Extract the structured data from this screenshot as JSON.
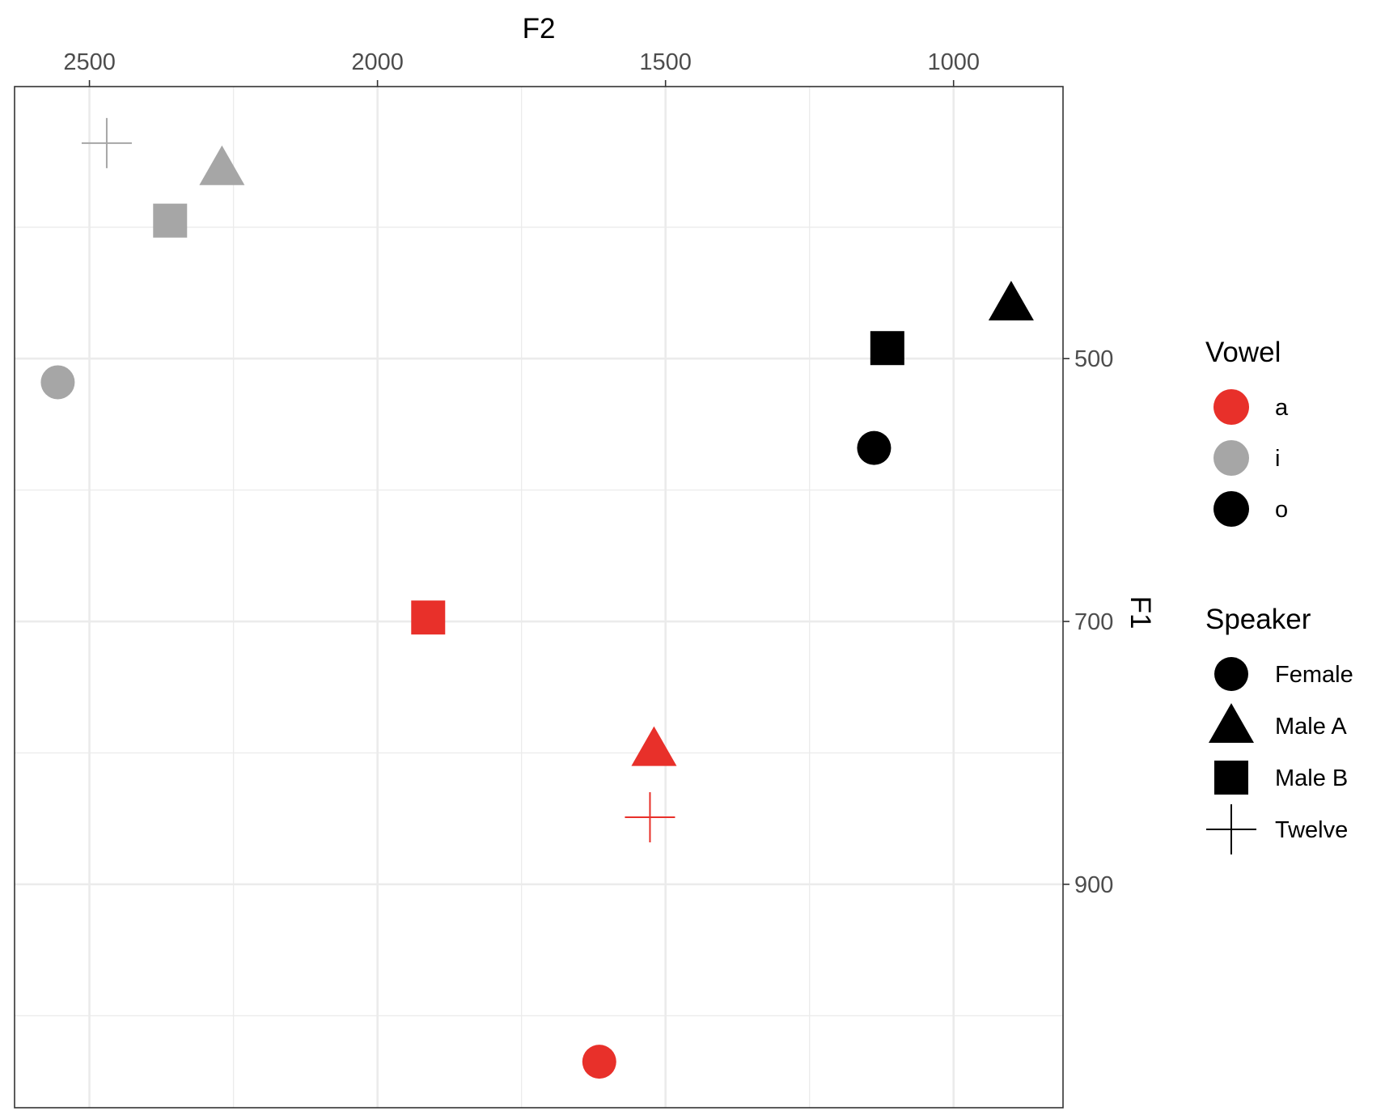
{
  "colors": {
    "a": "#e8302a",
    "i": "#a6a6a6",
    "o": "#000000",
    "grid": "#ebebeb",
    "panel_border": "#333333",
    "tick_text": "#4d4d4d"
  },
  "chart_data": {
    "type": "scatter",
    "title": "",
    "xlabel": "F2",
    "ylabel": "F1",
    "x_axis_position": "top",
    "y_axis_position": "right",
    "x_reversed": true,
    "y_reversed": true,
    "xlim": [
      2630,
      810
    ],
    "ylim": [
      293,
      1070
    ],
    "x_ticks": [
      2500,
      2000,
      1500,
      1000
    ],
    "x_tick_labels": [
      "2500",
      "2000",
      "1500",
      "1000"
    ],
    "y_ticks": [
      500,
      700,
      900
    ],
    "y_tick_labels": [
      "500",
      "700",
      "900"
    ],
    "grid": true,
    "legend_position": "right",
    "legends": [
      {
        "title": "Vowel",
        "aesthetic": "color",
        "entries": [
          {
            "label": "a",
            "color": "#e8302a"
          },
          {
            "label": "i",
            "color": "#a6a6a6"
          },
          {
            "label": "o",
            "color": "#000000"
          }
        ]
      },
      {
        "title": "Speaker",
        "aesthetic": "shape",
        "entries": [
          {
            "label": "Female",
            "shape": "circle"
          },
          {
            "label": "Male A",
            "shape": "triangle"
          },
          {
            "label": "Male B",
            "shape": "square"
          },
          {
            "label": "Twelve",
            "shape": "plus"
          }
        ]
      }
    ],
    "points": [
      {
        "vowel": "i",
        "speaker": "Twelve",
        "shape": "plus",
        "F2": 2470,
        "F1": 336
      },
      {
        "vowel": "i",
        "speaker": "Male A",
        "shape": "triangle",
        "F2": 2270,
        "F1": 355
      },
      {
        "vowel": "i",
        "speaker": "Male B",
        "shape": "square",
        "F2": 2360,
        "F1": 395
      },
      {
        "vowel": "i",
        "speaker": "Female",
        "shape": "circle",
        "F2": 2555,
        "F1": 518
      },
      {
        "vowel": "o",
        "speaker": "Male A",
        "shape": "triangle",
        "F2": 900,
        "F1": 458
      },
      {
        "vowel": "o",
        "speaker": "Male B",
        "shape": "square",
        "F2": 1115,
        "F1": 492
      },
      {
        "vowel": "o",
        "speaker": "Female",
        "shape": "circle",
        "F2": 1138,
        "F1": 568
      },
      {
        "vowel": "a",
        "speaker": "Male B",
        "shape": "square",
        "F2": 1912,
        "F1": 697
      },
      {
        "vowel": "a",
        "speaker": "Male A",
        "shape": "triangle",
        "F2": 1520,
        "F1": 797
      },
      {
        "vowel": "a",
        "speaker": "Twelve",
        "shape": "plus",
        "F2": 1527,
        "F1": 849
      },
      {
        "vowel": "a",
        "speaker": "Female",
        "shape": "circle",
        "F2": 1615,
        "F1": 1035
      }
    ]
  }
}
